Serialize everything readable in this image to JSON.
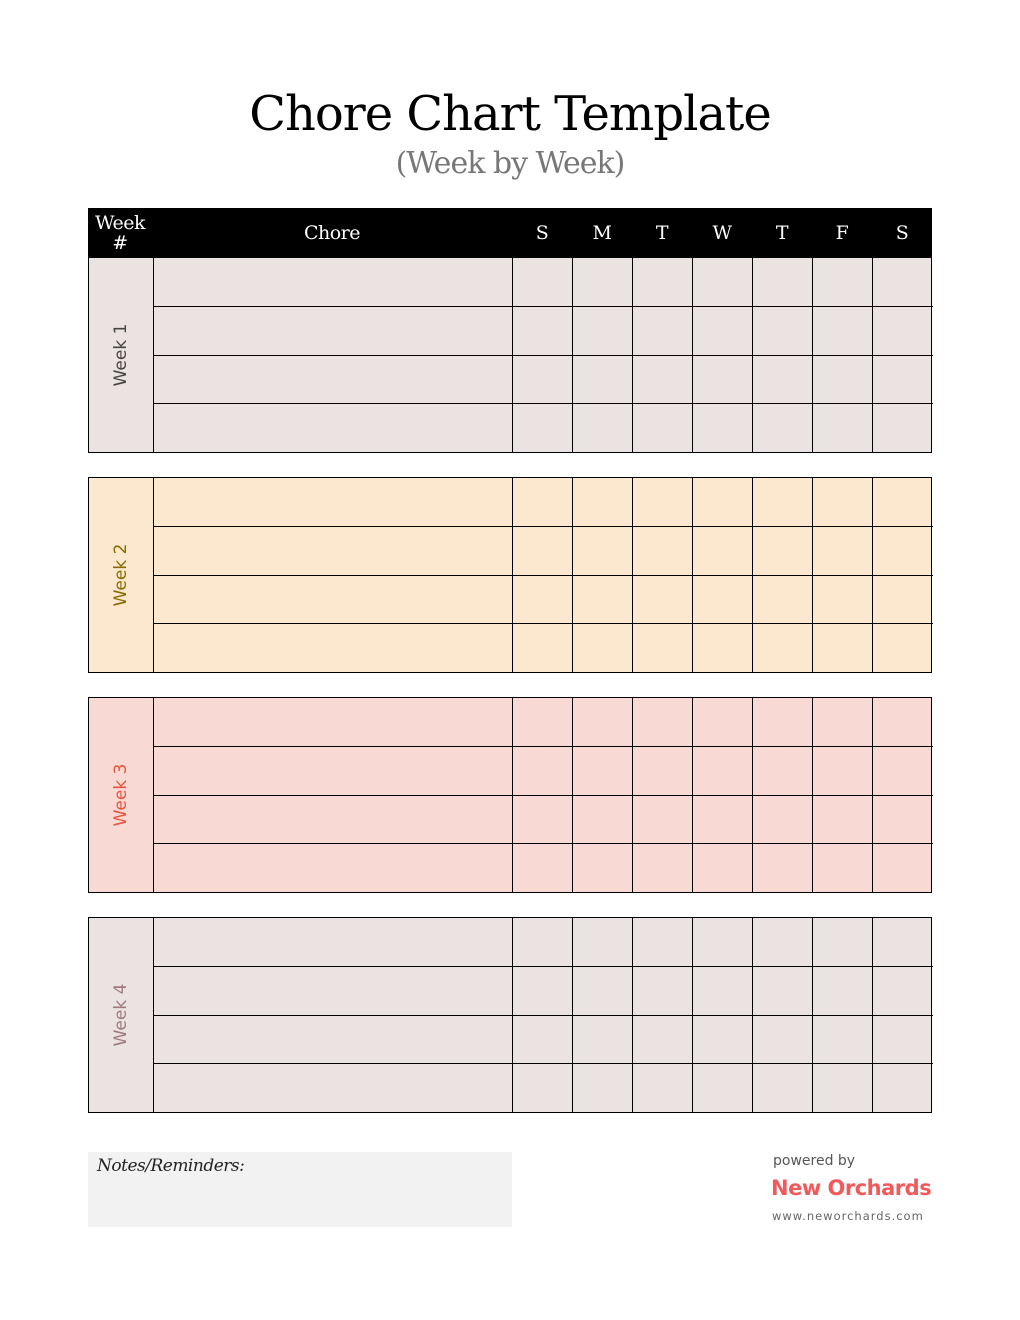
{
  "title": "Chore Chart Template",
  "subtitle": "(Week by Week)",
  "header": {
    "week_line1": "Week",
    "week_line2": "#",
    "chore": "Chore",
    "days": [
      "S",
      "M",
      "T",
      "W",
      "T",
      "F",
      "S"
    ]
  },
  "weeks": [
    {
      "label": "Week 1",
      "bg": "#ebe3e2",
      "label_color": "#444444"
    },
    {
      "label": "Week 2",
      "bg": "#fbe8cf",
      "label_color": "#8a6a00"
    },
    {
      "label": "Week 3",
      "bg": "#f9d9d4",
      "label_color": "#e8553f"
    },
    {
      "label": "Week 4",
      "bg": "#ebe3e2",
      "label_color": "#a07a7c"
    }
  ],
  "notes": {
    "label": "Notes/Reminders:"
  },
  "footer": {
    "powered_by": "powered by",
    "brand": "New Orchards",
    "url": "www.neworchards.com",
    "brand_color": "#f05a5a"
  }
}
